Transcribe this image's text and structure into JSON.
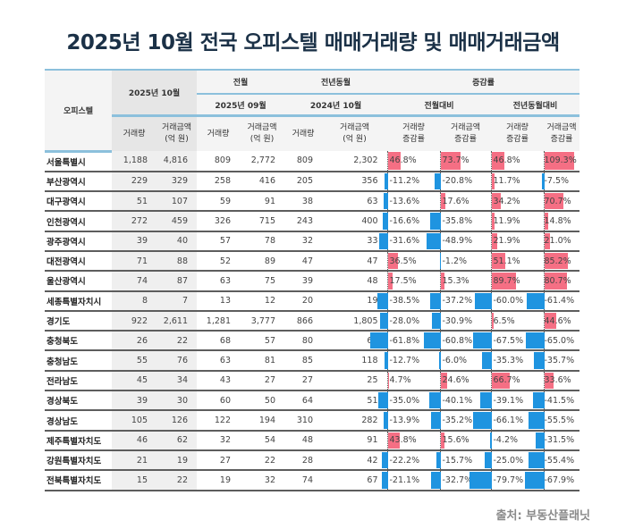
{
  "title": "2025년 10월 전국 오피스텔 매매거래량 및 매매거래금액",
  "header": {
    "region": "오피스텔",
    "current": "2025년 10월",
    "prev_month": "전월",
    "prev_year": "전년동월",
    "change": "증감률",
    "prev_month_date": "2025년 09월",
    "prev_year_date": "2024년 10월",
    "mom": "전월대비",
    "yoy": "전년동월대비",
    "volume": "거래량",
    "amount_1": "거래금액",
    "amount_2": "(억 원)",
    "vol_change_1": "거래량",
    "amt_change_1": "거래금액",
    "change_2": "증감률"
  },
  "colors": {
    "positive": "#f56f84",
    "negative": "#1f94e0",
    "title": "#1b3147"
  },
  "rows": [
    {
      "region": "서울특별시",
      "v1": "1,188",
      "a1": "4,816",
      "v2": "809",
      "a2": "2,772",
      "v3": "809",
      "a3": "2,302",
      "pct": [
        46.8,
        73.7,
        46.8,
        109.3
      ]
    },
    {
      "region": "부산광역시",
      "v1": "229",
      "a1": "329",
      "v2": "258",
      "a2": "416",
      "v3": "205",
      "a3": "356",
      "pct": [
        -11.2,
        -20.8,
        11.7,
        -7.5
      ]
    },
    {
      "region": "대구광역시",
      "v1": "51",
      "a1": "107",
      "v2": "59",
      "a2": "91",
      "v3": "38",
      "a3": "63",
      "pct": [
        -13.6,
        17.6,
        34.2,
        70.7
      ]
    },
    {
      "region": "인천광역시",
      "v1": "272",
      "a1": "459",
      "v2": "326",
      "a2": "715",
      "v3": "243",
      "a3": "400",
      "pct": [
        -16.6,
        -35.8,
        11.9,
        14.8
      ]
    },
    {
      "region": "광주광역시",
      "v1": "39",
      "a1": "40",
      "v2": "57",
      "a2": "78",
      "v3": "32",
      "a3": "33",
      "pct": [
        -31.6,
        -48.9,
        21.9,
        21.0
      ]
    },
    {
      "region": "대전광역시",
      "v1": "71",
      "a1": "88",
      "v2": "52",
      "a2": "89",
      "v3": "47",
      "a3": "47",
      "pct": [
        36.5,
        -1.2,
        51.1,
        85.2
      ]
    },
    {
      "region": "울산광역시",
      "v1": "74",
      "a1": "87",
      "v2": "63",
      "a2": "75",
      "v3": "39",
      "a3": "48",
      "pct": [
        17.5,
        15.3,
        89.7,
        80.7
      ]
    },
    {
      "region": "세종특별자치시",
      "v1": "8",
      "a1": "7",
      "v2": "13",
      "a2": "12",
      "v3": "20",
      "a3": "19",
      "pct": [
        -38.5,
        -37.2,
        -60.0,
        -61.4
      ]
    },
    {
      "region": "경기도",
      "v1": "922",
      "a1": "2,611",
      "v2": "1,281",
      "a2": "3,777",
      "v3": "866",
      "a3": "1,805",
      "pct": [
        -28.0,
        -30.9,
        6.5,
        44.6
      ]
    },
    {
      "region": "충청북도",
      "v1": "26",
      "a1": "22",
      "v2": "68",
      "a2": "57",
      "v3": "80",
      "a3": "64",
      "pct": [
        -61.8,
        -60.8,
        -67.5,
        -65.0
      ]
    },
    {
      "region": "충청남도",
      "v1": "55",
      "a1": "76",
      "v2": "63",
      "a2": "81",
      "v3": "85",
      "a3": "118",
      "pct": [
        -12.7,
        -6.0,
        -35.3,
        -35.7
      ]
    },
    {
      "region": "전라남도",
      "v1": "45",
      "a1": "34",
      "v2": "43",
      "a2": "27",
      "v3": "27",
      "a3": "25",
      "pct": [
        4.7,
        24.6,
        66.7,
        33.6
      ]
    },
    {
      "region": "경상북도",
      "v1": "39",
      "a1": "30",
      "v2": "60",
      "a2": "50",
      "v3": "64",
      "a3": "51",
      "pct": [
        -35.0,
        -40.1,
        -39.1,
        -41.5
      ]
    },
    {
      "region": "경상남도",
      "v1": "105",
      "a1": "126",
      "v2": "122",
      "a2": "194",
      "v3": "310",
      "a3": "282",
      "pct": [
        -13.9,
        -35.2,
        -66.1,
        -55.5
      ]
    },
    {
      "region": "제주특별자치도",
      "v1": "46",
      "a1": "62",
      "v2": "32",
      "a2": "54",
      "v3": "48",
      "a3": "91",
      "pct": [
        43.8,
        15.6,
        -4.2,
        -31.5
      ]
    },
    {
      "region": "강원특별자치도",
      "v1": "21",
      "a1": "19",
      "v2": "27",
      "a2": "22",
      "v3": "28",
      "a3": "42",
      "pct": [
        -22.2,
        -15.7,
        -25.0,
        -55.4
      ]
    },
    {
      "region": "전북특별자치도",
      "v1": "15",
      "a1": "22",
      "v2": "19",
      "a2": "32",
      "v3": "74",
      "a3": "67",
      "pct": [
        -21.1,
        -32.7,
        -79.7,
        -67.9
      ]
    }
  ],
  "source": "출처: 부동산플래닛"
}
